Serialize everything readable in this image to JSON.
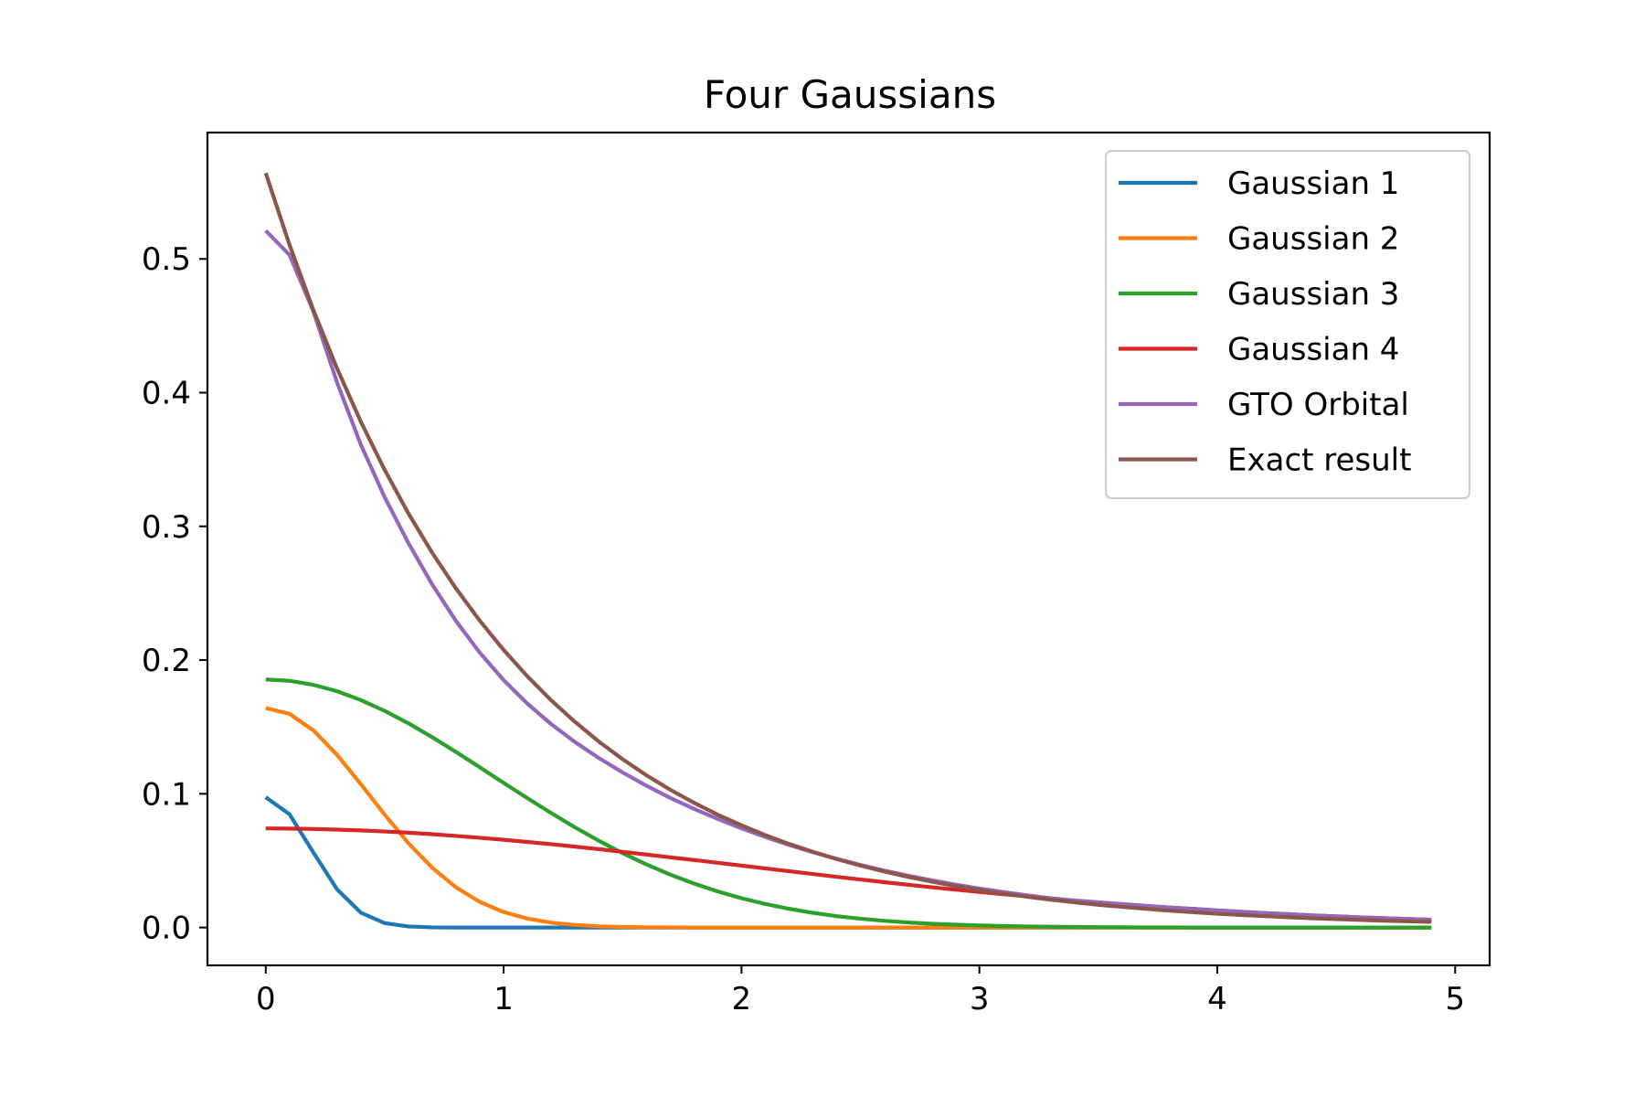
{
  "chart_data": {
    "type": "line",
    "title": "Four Gaussians",
    "xlabel": "",
    "ylabel": "",
    "xlim": [
      -0.245,
      5.145
    ],
    "ylim": [
      -0.0283,
      0.5945
    ],
    "xticks": [
      0,
      1,
      2,
      3,
      4,
      5
    ],
    "xtick_labels": [
      "0",
      "1",
      "2",
      "3",
      "4",
      "5"
    ],
    "yticks": [
      0.0,
      0.1,
      0.2,
      0.3,
      0.4,
      0.5
    ],
    "ytick_labels": [
      "0.0",
      "0.1",
      "0.2",
      "0.3",
      "0.4",
      "0.5"
    ],
    "grid": false,
    "legend_position": "top-right",
    "x": [
      0,
      0.1,
      0.2,
      0.3,
      0.4,
      0.5,
      0.6,
      0.7,
      0.8,
      0.9,
      1.0,
      1.1,
      1.2,
      1.3,
      1.4,
      1.5,
      1.6,
      1.7,
      1.8,
      1.9,
      2.0,
      2.1,
      2.2,
      2.3,
      2.4,
      2.5,
      2.6,
      2.7,
      2.8,
      2.9,
      3.0,
      3.1,
      3.2,
      3.3,
      3.4,
      3.5,
      3.6,
      3.7,
      3.8,
      3.9,
      4.0,
      4.1,
      4.2,
      4.3,
      4.4,
      4.5,
      4.6,
      4.7,
      4.8,
      4.9
    ],
    "series": [
      {
        "name": "Gaussian 1",
        "color": "#1f77b4",
        "values": [
          0.0974,
          0.0847,
          0.0562,
          0.0285,
          0.0111,
          0.0033,
          0.0008,
          0.0001,
          0,
          0,
          0,
          0,
          0,
          0,
          0,
          0,
          0,
          0,
          0,
          0,
          0,
          0,
          0,
          0,
          0,
          0,
          0,
          0,
          0,
          0,
          0,
          0,
          0,
          0,
          0,
          0,
          0,
          0,
          0,
          0,
          0,
          0,
          0,
          0,
          0,
          0,
          0,
          0,
          0,
          0
        ]
      },
      {
        "name": "Gaussian 2",
        "color": "#ff7f0e",
        "values": [
          0.1641,
          0.1598,
          0.1475,
          0.1291,
          0.1072,
          0.0844,
          0.063,
          0.0447,
          0.03,
          0.0192,
          0.0116,
          0.0067,
          0.0036,
          0.0019,
          0.0009,
          0.0004,
          0.0002,
          0.0001,
          0,
          0,
          0,
          0,
          0,
          0,
          0,
          0,
          0,
          0,
          0,
          0,
          0,
          0,
          0,
          0,
          0,
          0,
          0,
          0,
          0,
          0,
          0,
          0,
          0,
          0,
          0,
          0,
          0,
          0,
          0,
          0
        ]
      },
      {
        "name": "Gaussian 3",
        "color": "#2ca02c",
        "values": [
          0.1855,
          0.1845,
          0.1815,
          0.1767,
          0.1701,
          0.162,
          0.1527,
          0.1423,
          0.1313,
          0.1198,
          0.1082,
          0.0967,
          0.0856,
          0.0749,
          0.0649,
          0.0556,
          0.0472,
          0.0396,
          0.0329,
          0.027,
          0.0219,
          0.0176,
          0.014,
          0.011,
          0.0085,
          0.0066,
          0.005,
          0.0038,
          0.0028,
          0.0021,
          0.0015,
          0.0011,
          0.0008,
          0.0006,
          0.0004,
          0.0003,
          0.0002,
          0.0001,
          0.0001,
          0,
          0,
          0,
          0,
          0,
          0,
          0,
          0,
          0,
          0,
          0
        ]
      },
      {
        "name": "Gaussian 4",
        "color": "#d62728",
        "values": [
          0.0741,
          0.074,
          0.0737,
          0.0732,
          0.0726,
          0.0718,
          0.0709,
          0.0698,
          0.0685,
          0.0671,
          0.0656,
          0.064,
          0.0623,
          0.0605,
          0.0586,
          0.0566,
          0.0546,
          0.0525,
          0.0505,
          0.0484,
          0.0463,
          0.0442,
          0.0421,
          0.04,
          0.0379,
          0.0359,
          0.0339,
          0.032,
          0.0301,
          0.0283,
          0.0266,
          0.0249,
          0.0233,
          0.0217,
          0.0202,
          0.0188,
          0.0175,
          0.0162,
          0.015,
          0.0139,
          0.0128,
          0.0118,
          0.0108,
          0.01,
          0.0091,
          0.0084,
          0.0076,
          0.007,
          0.0064,
          0.0058
        ]
      },
      {
        "name": "GTO Orbital",
        "color": "#9467bd",
        "values": [
          0.5211,
          0.503,
          0.4609,
          0.4075,
          0.361,
          0.3218,
          0.2874,
          0.2565,
          0.2292,
          0.2055,
          0.185,
          0.1674,
          0.1521,
          0.1387,
          0.1268,
          0.116,
          0.1061,
          0.097,
          0.0888,
          0.0812,
          0.0741,
          0.0677,
          0.0618,
          0.0563,
          0.0514,
          0.0468,
          0.0426,
          0.0388,
          0.0353,
          0.0321,
          0.0292,
          0.0266,
          0.0241,
          0.0219,
          0.0202,
          0.0188,
          0.0175,
          0.0162,
          0.015,
          0.0139,
          0.0128,
          0.0118,
          0.0108,
          0.01,
          0.0091,
          0.0084,
          0.0076,
          0.007,
          0.0064,
          0.0058
        ]
      },
      {
        "name": "Exact result",
        "color": "#8c564b",
        "values": [
          0.5642,
          0.5105,
          0.4619,
          0.418,
          0.3782,
          0.3422,
          0.3096,
          0.2802,
          0.2535,
          0.2294,
          0.2076,
          0.1878,
          0.1699,
          0.1538,
          0.1391,
          0.1259,
          0.1139,
          0.1031,
          0.0933,
          0.0844,
          0.0764,
          0.0691,
          0.0625,
          0.0566,
          0.0512,
          0.0463,
          0.0419,
          0.0379,
          0.0343,
          0.031,
          0.0281,
          0.0254,
          0.023,
          0.0208,
          0.0188,
          0.017,
          0.0154,
          0.014,
          0.0126,
          0.0114,
          0.0103,
          0.0094,
          0.0085,
          0.0077,
          0.0069,
          0.0063,
          0.0057,
          0.0051,
          0.0047,
          0.0042
        ]
      }
    ]
  }
}
